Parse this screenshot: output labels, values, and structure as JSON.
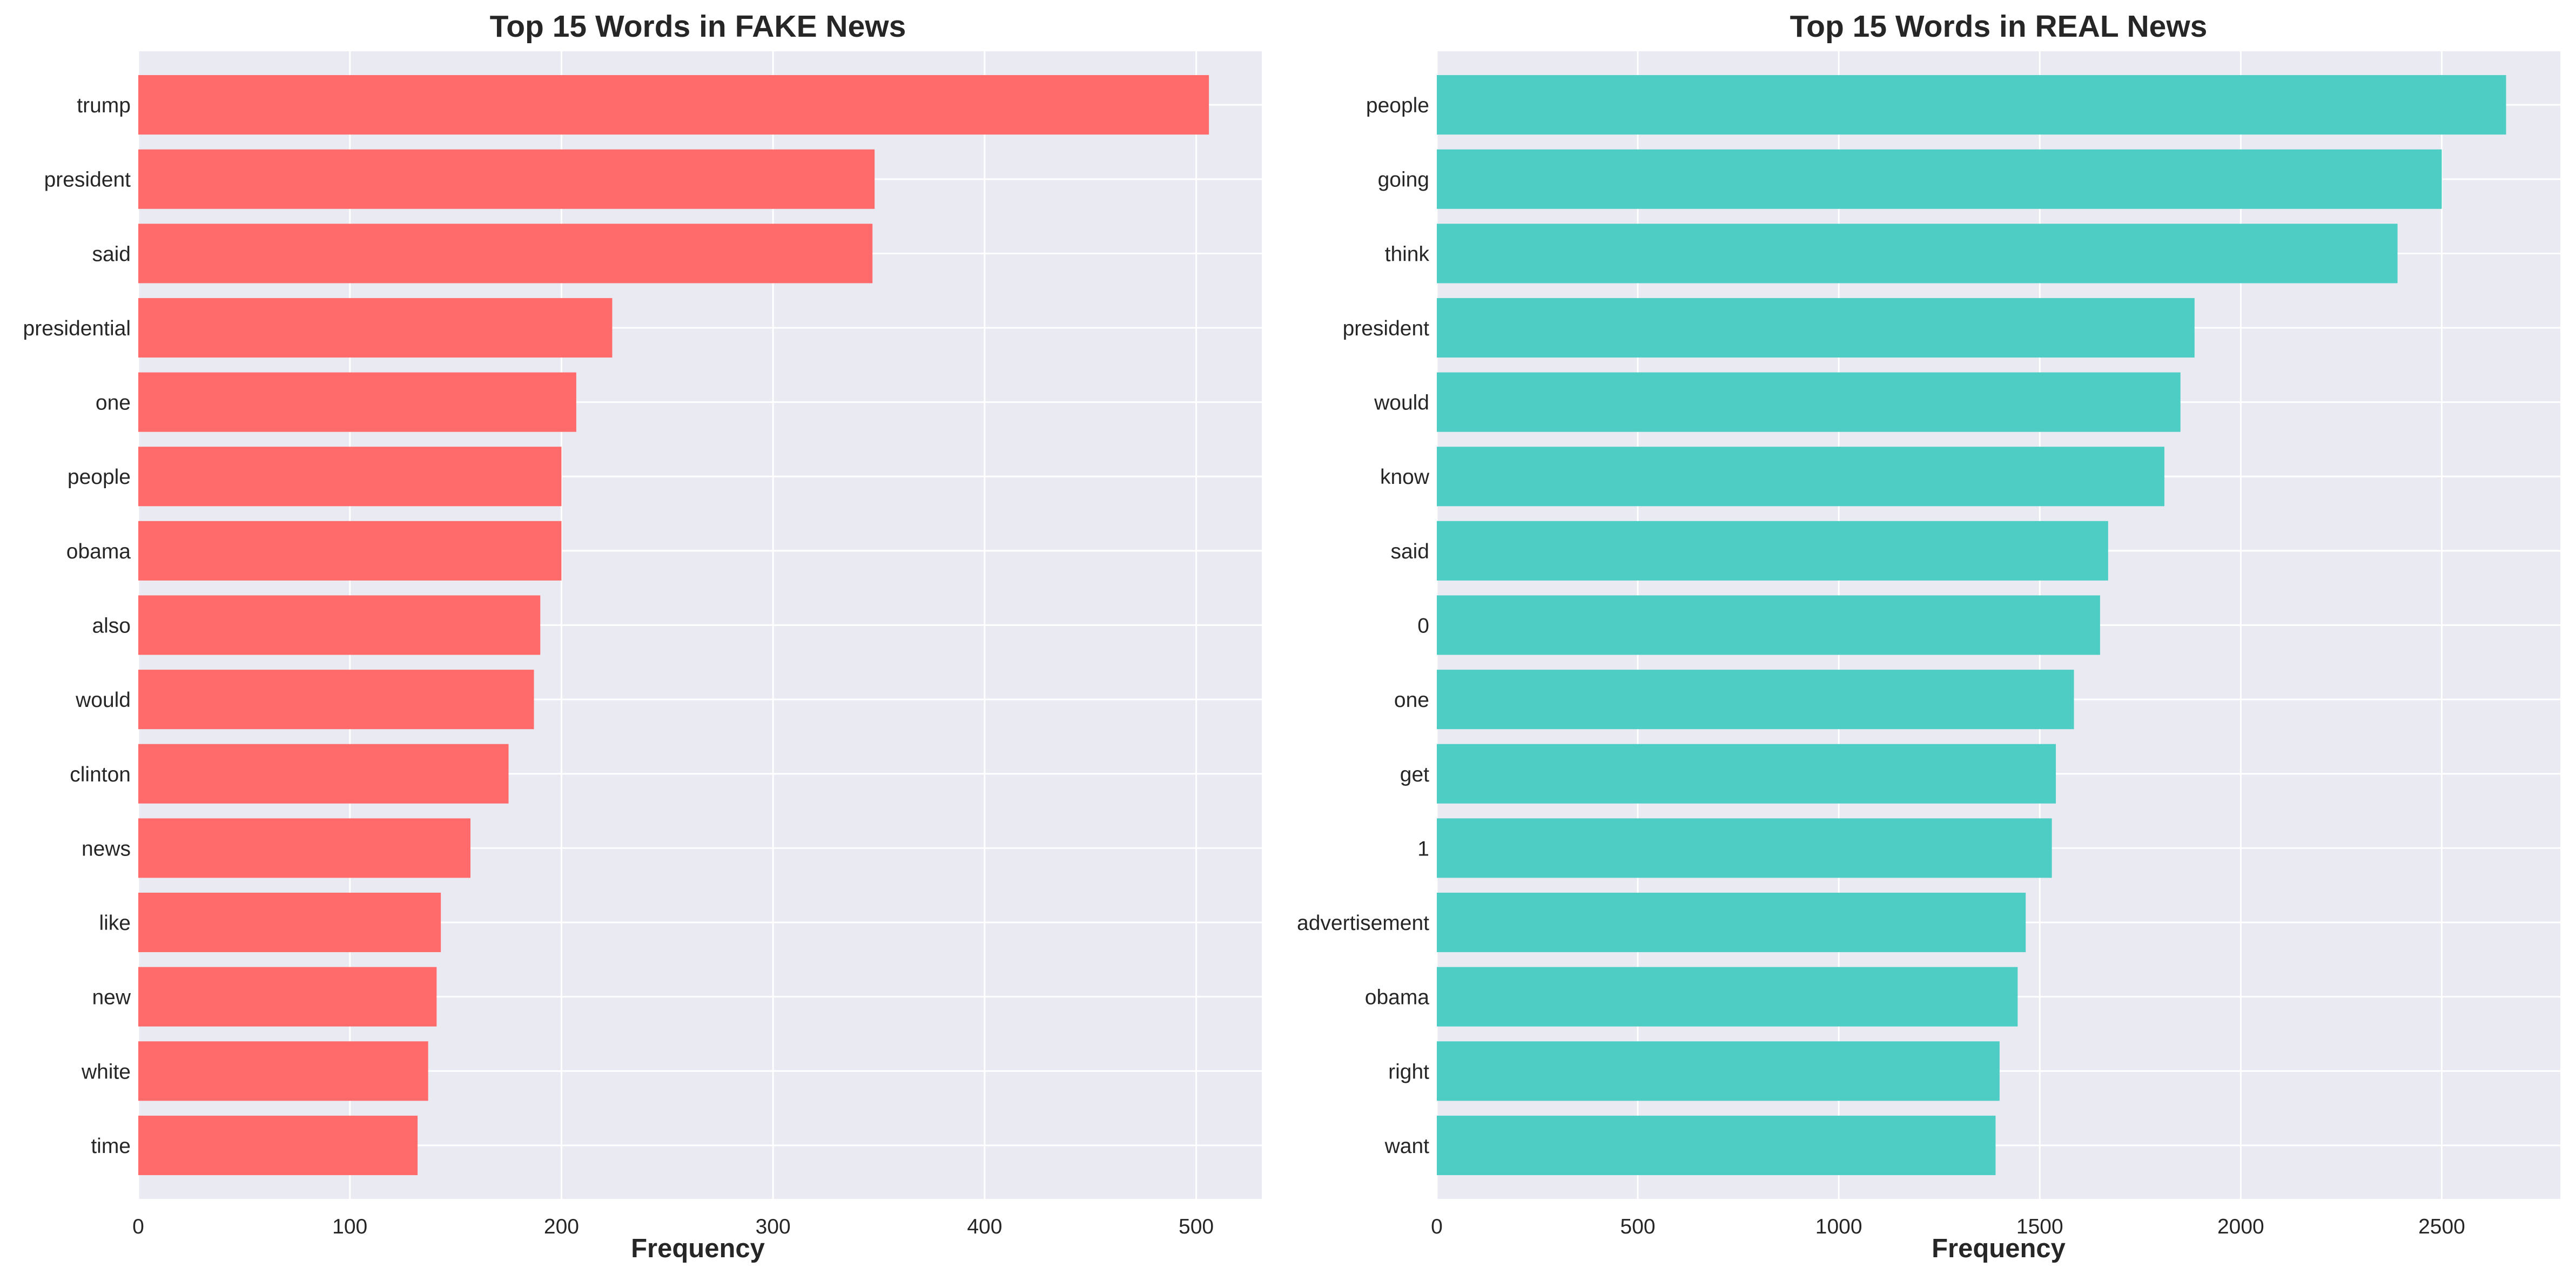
{
  "figure": {
    "background": "#ffffff",
    "axes_facecolor": "#eaeaf2",
    "grid_color": "#ffffff"
  },
  "chart_data": [
    {
      "type": "bar",
      "orientation": "horizontal",
      "title": "Top 15 Words in FAKE News",
      "xlabel": "Frequency",
      "ylabel": "",
      "color": "#ff6b6b",
      "categories": [
        "trump",
        "president",
        "said",
        "presidential",
        "one",
        "people",
        "obama",
        "also",
        "would",
        "clinton",
        "news",
        "like",
        "new",
        "white",
        "time"
      ],
      "values": [
        506,
        348,
        347,
        224,
        207,
        200,
        200,
        190,
        187,
        175,
        157,
        143,
        141,
        137,
        132
      ],
      "xlim": [
        0,
        531
      ],
      "xticks": [
        0,
        100,
        200,
        300,
        400,
        500
      ],
      "grid": true,
      "legend": "none"
    },
    {
      "type": "bar",
      "orientation": "horizontal",
      "title": "Top 15 Words in REAL News",
      "xlabel": "Frequency",
      "ylabel": "",
      "color": "#4ecdc4",
      "categories": [
        "people",
        "going",
        "think",
        "president",
        "would",
        "know",
        "said",
        "0",
        "one",
        "get",
        "1",
        "advertisement",
        "obama",
        "right",
        "want"
      ],
      "values": [
        2660,
        2500,
        2390,
        1885,
        1850,
        1810,
        1670,
        1650,
        1585,
        1540,
        1530,
        1465,
        1445,
        1400,
        1390
      ],
      "xlim": [
        0,
        2795
      ],
      "xticks": [
        0,
        500,
        1000,
        1500,
        2000,
        2500
      ],
      "grid": true,
      "legend": "none"
    }
  ]
}
